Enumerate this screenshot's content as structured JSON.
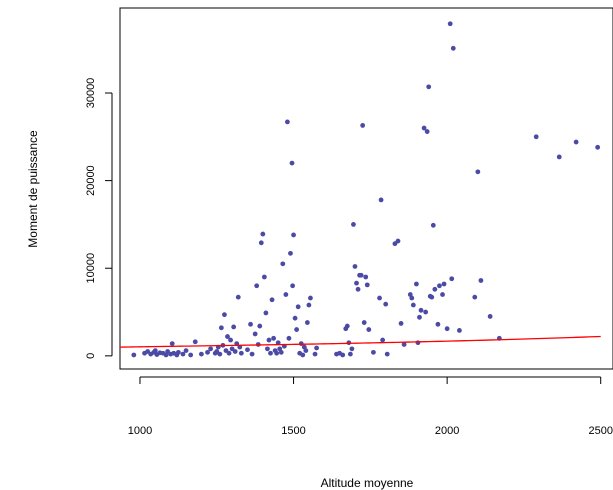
{
  "chart_data": {
    "type": "scatter",
    "title": "",
    "xlabel": "Altitude moyenne",
    "ylabel": "Moment de puissance",
    "xlim": [
      935,
      2540
    ],
    "ylim": [
      -1500,
      39700
    ],
    "x_ticks": [
      1000,
      1500,
      2000,
      2500
    ],
    "x_tick_labels": [
      "1000",
      "1500",
      "2000",
      "2500"
    ],
    "y_ticks": [
      0,
      10000,
      20000,
      30000
    ],
    "y_tick_labels": [
      "0",
      "10000",
      "20000",
      "30000"
    ],
    "grid": false,
    "legend": "none",
    "points_color": "#4b4ba6",
    "curve_color": "#ff0000",
    "points": [
      [
        980,
        100
      ],
      [
        1015,
        300
      ],
      [
        1025,
        500
      ],
      [
        1035,
        200
      ],
      [
        1045,
        400
      ],
      [
        1050,
        600
      ],
      [
        1055,
        150
      ],
      [
        1065,
        350
      ],
      [
        1075,
        300
      ],
      [
        1085,
        100
      ],
      [
        1090,
        500
      ],
      [
        1100,
        200
      ],
      [
        1105,
        1400
      ],
      [
        1110,
        300
      ],
      [
        1120,
        100
      ],
      [
        1125,
        400
      ],
      [
        1140,
        200
      ],
      [
        1150,
        600
      ],
      [
        1165,
        100
      ],
      [
        1180,
        1600
      ],
      [
        1200,
        200
      ],
      [
        1220,
        400
      ],
      [
        1230,
        800
      ],
      [
        1245,
        300
      ],
      [
        1250,
        500
      ],
      [
        1255,
        1000
      ],
      [
        1260,
        200
      ],
      [
        1265,
        3200
      ],
      [
        1270,
        1200
      ],
      [
        1275,
        4700
      ],
      [
        1280,
        600
      ],
      [
        1285,
        2200
      ],
      [
        1290,
        300
      ],
      [
        1295,
        1800
      ],
      [
        1300,
        800
      ],
      [
        1305,
        3300
      ],
      [
        1310,
        500
      ],
      [
        1315,
        1400
      ],
      [
        1320,
        6700
      ],
      [
        1325,
        1000
      ],
      [
        1330,
        300
      ],
      [
        1350,
        700
      ],
      [
        1360,
        3600
      ],
      [
        1365,
        200
      ],
      [
        1375,
        2500
      ],
      [
        1380,
        8000
      ],
      [
        1385,
        1300
      ],
      [
        1390,
        3400
      ],
      [
        1395,
        12900
      ],
      [
        1400,
        13900
      ],
      [
        1405,
        9000
      ],
      [
        1410,
        4900
      ],
      [
        1415,
        800
      ],
      [
        1420,
        1800
      ],
      [
        1425,
        300
      ],
      [
        1430,
        6400
      ],
      [
        1435,
        2000
      ],
      [
        1440,
        600
      ],
      [
        1445,
        300
      ],
      [
        1450,
        1500
      ],
      [
        1455,
        800
      ],
      [
        1460,
        400
      ],
      [
        1465,
        10500
      ],
      [
        1470,
        1100
      ],
      [
        1475,
        7000
      ],
      [
        1480,
        26700
      ],
      [
        1485,
        2000
      ],
      [
        1490,
        11700
      ],
      [
        1495,
        22000
      ],
      [
        1497,
        8000
      ],
      [
        1500,
        13800
      ],
      [
        1505,
        4300
      ],
      [
        1510,
        3000
      ],
      [
        1515,
        5600
      ],
      [
        1520,
        300
      ],
      [
        1525,
        1400
      ],
      [
        1530,
        100
      ],
      [
        1535,
        1000
      ],
      [
        1540,
        600
      ],
      [
        1545,
        3800
      ],
      [
        1550,
        5800
      ],
      [
        1555,
        6600
      ],
      [
        1570,
        200
      ],
      [
        1575,
        900
      ],
      [
        1640,
        200
      ],
      [
        1650,
        300
      ],
      [
        1660,
        100
      ],
      [
        1670,
        3100
      ],
      [
        1675,
        3400
      ],
      [
        1680,
        1500
      ],
      [
        1685,
        200
      ],
      [
        1690,
        800
      ],
      [
        1695,
        15000
      ],
      [
        1700,
        10200
      ],
      [
        1705,
        8300
      ],
      [
        1710,
        7600
      ],
      [
        1715,
        9200
      ],
      [
        1720,
        9200
      ],
      [
        1725,
        26300
      ],
      [
        1730,
        3800
      ],
      [
        1735,
        9000
      ],
      [
        1740,
        8100
      ],
      [
        1745,
        3000
      ],
      [
        1760,
        400
      ],
      [
        1780,
        6600
      ],
      [
        1785,
        17800
      ],
      [
        1790,
        1800
      ],
      [
        1800,
        5900
      ],
      [
        1805,
        200
      ],
      [
        1830,
        12800
      ],
      [
        1840,
        13100
      ],
      [
        1850,
        3700
      ],
      [
        1860,
        1300
      ],
      [
        1880,
        7000
      ],
      [
        1885,
        6600
      ],
      [
        1890,
        5800
      ],
      [
        1900,
        8200
      ],
      [
        1905,
        1500
      ],
      [
        1910,
        4400
      ],
      [
        1915,
        5200
      ],
      [
        1925,
        26000
      ],
      [
        1930,
        5000
      ],
      [
        1935,
        25600
      ],
      [
        1940,
        30700
      ],
      [
        1945,
        6800
      ],
      [
        1950,
        6700
      ],
      [
        1955,
        14900
      ],
      [
        1960,
        7600
      ],
      [
        1970,
        3600
      ],
      [
        1975,
        8000
      ],
      [
        1985,
        7000
      ],
      [
        1990,
        8200
      ],
      [
        2000,
        3100
      ],
      [
        2010,
        37900
      ],
      [
        2015,
        8800
      ],
      [
        2020,
        35100
      ],
      [
        2040,
        2900
      ],
      [
        2090,
        6700
      ],
      [
        2100,
        21000
      ],
      [
        2110,
        8600
      ],
      [
        2140,
        4500
      ],
      [
        2170,
        2000
      ],
      [
        2290,
        25000
      ],
      [
        2365,
        22700
      ],
      [
        2420,
        24400
      ],
      [
        2490,
        23800
      ]
    ],
    "curve": {
      "description_free": true,
      "x_start": 935,
      "x_end": 2500,
      "coefficients": [
        1000,
        0.51,
        1.06e-05,
        1.012e-07
      ],
      "x_offset": 935
    }
  }
}
